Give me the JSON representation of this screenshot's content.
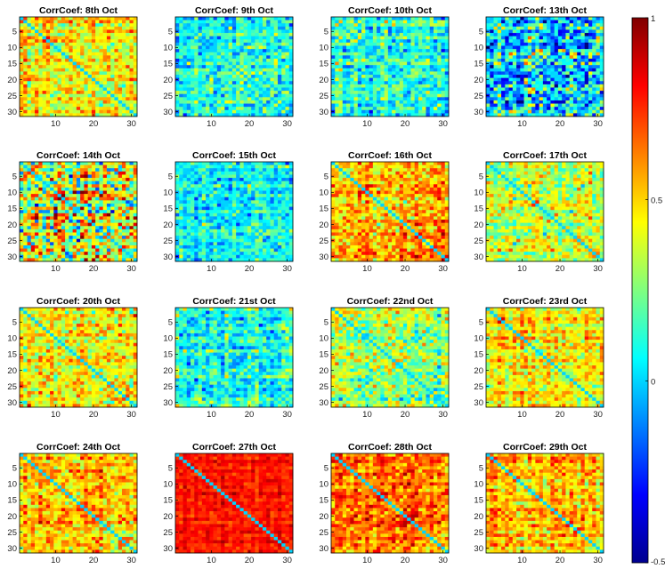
{
  "figure_title": "",
  "chart_data": {
    "type": "heatmap",
    "matrix_size": 31,
    "colormap": "jet",
    "clim": [
      -0.5,
      1
    ],
    "x_ticks": [
      10,
      20,
      30
    ],
    "y_ticks": [
      5,
      10,
      15,
      20,
      25,
      30
    ],
    "colorbar": {
      "ticks": [
        {
          "value": 1,
          "label": "1"
        },
        {
          "value": 0.5,
          "label": "0.5"
        },
        {
          "value": 0,
          "label": "0"
        },
        {
          "value": -0.5,
          "label": "-0.5"
        }
      ]
    },
    "panels": [
      {
        "title": "CorrCoef: 8th Oct",
        "mean": 0.45,
        "spread": 0.3,
        "seed": 8
      },
      {
        "title": "CorrCoef: 9th Oct",
        "mean": 0.12,
        "spread": 0.3,
        "seed": 9
      },
      {
        "title": "CorrCoef: 10th Oct",
        "mean": 0.15,
        "spread": 0.32,
        "seed": 10
      },
      {
        "title": "CorrCoef: 13th Oct",
        "mean": 0.05,
        "spread": 0.55,
        "seed": 13
      },
      {
        "title": "CorrCoef: 14th Oct",
        "mean": 0.35,
        "spread": 0.6,
        "seed": 14
      },
      {
        "title": "CorrCoef: 15th Oct",
        "mean": 0.08,
        "spread": 0.3,
        "seed": 15
      },
      {
        "title": "CorrCoef: 16th Oct",
        "mean": 0.55,
        "spread": 0.32,
        "seed": 16
      },
      {
        "title": "CorrCoef: 17th Oct",
        "mean": 0.35,
        "spread": 0.3,
        "seed": 17
      },
      {
        "title": "CorrCoef: 20th Oct",
        "mean": 0.45,
        "spread": 0.3,
        "seed": 20
      },
      {
        "title": "CorrCoef: 21st Oct",
        "mean": 0.1,
        "spread": 0.32,
        "seed": 21
      },
      {
        "title": "CorrCoef: 22nd Oct",
        "mean": 0.25,
        "spread": 0.35,
        "seed": 22
      },
      {
        "title": "CorrCoef: 23rd Oct",
        "mean": 0.45,
        "spread": 0.28,
        "seed": 23
      },
      {
        "title": "CorrCoef: 24th Oct",
        "mean": 0.5,
        "spread": 0.3,
        "seed": 24
      },
      {
        "title": "CorrCoef: 27th Oct",
        "mean": 0.8,
        "spread": 0.12,
        "seed": 27
      },
      {
        "title": "CorrCoef: 28th Oct",
        "mean": 0.65,
        "spread": 0.28,
        "seed": 28
      },
      {
        "title": "CorrCoef: 29th Oct",
        "mean": 0.55,
        "spread": 0.28,
        "seed": 29
      }
    ]
  }
}
